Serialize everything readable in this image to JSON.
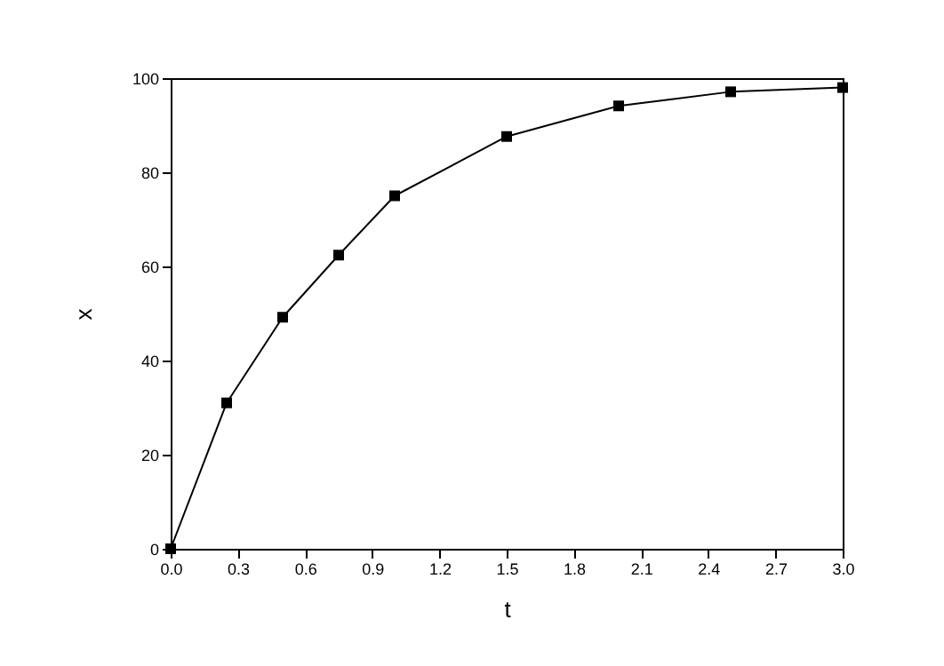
{
  "chart_data": {
    "type": "line",
    "xlabel": "t",
    "ylabel": "x",
    "x": [
      0,
      0.25,
      0.5,
      0.75,
      1.0,
      1.5,
      2.0,
      2.5,
      3.0
    ],
    "series": [
      {
        "color": "#000000",
        "values": [
          0,
          31,
          49.2,
          62.4,
          75,
          87.6,
          94.1,
          97.1,
          98
        ]
      }
    ],
    "xlim": [
      0,
      3.0
    ],
    "ylim": [
      0,
      100
    ],
    "xticks": [
      {
        "value": 0,
        "label": "0.0"
      },
      0.3,
      0.6,
      0.9,
      1.2,
      1.5,
      1.8,
      2.1,
      2.4,
      2.7,
      {
        "value": 3,
        "label": "3.0"
      }
    ],
    "yticks": [
      0,
      20,
      40,
      60,
      80,
      100
    ],
    "marker": "square",
    "line_style": "solid",
    "grid": false
  }
}
